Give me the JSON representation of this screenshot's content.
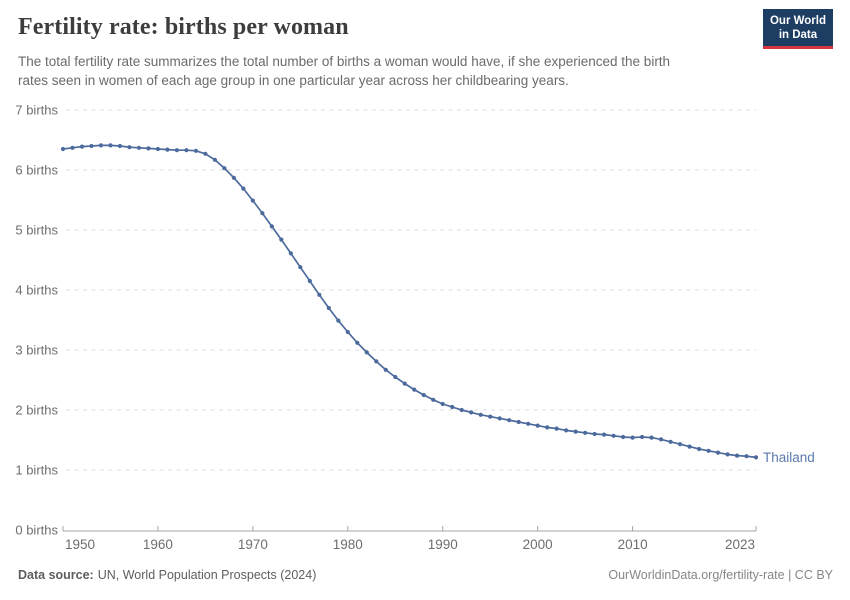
{
  "header": {
    "title": "Fertility rate: births per woman",
    "subtitle_lines": [
      "The total fertility rate summarizes the total number of births a woman would have, if she experienced the birth",
      "rates seen in women of each age group in one particular year across her childbearing years."
    ],
    "logo": {
      "line1": "Our World",
      "line2": "in Data",
      "bg_color": "#1d3d63",
      "accent_color": "#d7353f"
    }
  },
  "chart_data": {
    "type": "line",
    "title": "Fertility rate: births per woman",
    "xlabel": "",
    "ylabel": "births per woman",
    "x_range": [
      1950,
      2023
    ],
    "y_range": [
      0,
      7
    ],
    "grid": "dashed-horizontal",
    "legend_position": "end-of-line-label",
    "entity_label": "Thailand",
    "colors": {
      "line": "#4c6a9c",
      "entity_label": "#5b79ab",
      "grid": "#dedede",
      "axis": "#a5a5a5",
      "tick_label": "#6e6e6e"
    },
    "y_ticks": [
      {
        "value": 0,
        "label": "0 births"
      },
      {
        "value": 1,
        "label": "1 births"
      },
      {
        "value": 2,
        "label": "2 births"
      },
      {
        "value": 3,
        "label": "3 births"
      },
      {
        "value": 4,
        "label": "4 births"
      },
      {
        "value": 5,
        "label": "5 births"
      },
      {
        "value": 6,
        "label": "6 births"
      },
      {
        "value": 7,
        "label": "7 births"
      }
    ],
    "x_ticks": [
      {
        "value": 1950,
        "label": "1950"
      },
      {
        "value": 1960,
        "label": "1960"
      },
      {
        "value": 1970,
        "label": "1970"
      },
      {
        "value": 1980,
        "label": "1980"
      },
      {
        "value": 1990,
        "label": "1990"
      },
      {
        "value": 2000,
        "label": "2000"
      },
      {
        "value": 2010,
        "label": "2010"
      },
      {
        "value": 2023,
        "label": "2023"
      }
    ],
    "series": [
      {
        "name": "Thailand",
        "years": [
          1950,
          1951,
          1952,
          1953,
          1954,
          1955,
          1956,
          1957,
          1958,
          1959,
          1960,
          1961,
          1962,
          1963,
          1964,
          1965,
          1966,
          1967,
          1968,
          1969,
          1970,
          1971,
          1972,
          1973,
          1974,
          1975,
          1976,
          1977,
          1978,
          1979,
          1980,
          1981,
          1982,
          1983,
          1984,
          1985,
          1986,
          1987,
          1988,
          1989,
          1990,
          1991,
          1992,
          1993,
          1994,
          1995,
          1996,
          1997,
          1998,
          1999,
          2000,
          2001,
          2002,
          2003,
          2004,
          2005,
          2006,
          2007,
          2008,
          2009,
          2010,
          2011,
          2012,
          2013,
          2014,
          2015,
          2016,
          2017,
          2018,
          2019,
          2020,
          2021,
          2022,
          2023
        ],
        "values": [
          6.35,
          6.37,
          6.39,
          6.4,
          6.41,
          6.41,
          6.4,
          6.38,
          6.37,
          6.36,
          6.35,
          6.34,
          6.33,
          6.33,
          6.32,
          6.27,
          6.17,
          6.03,
          5.87,
          5.69,
          5.49,
          5.28,
          5.06,
          4.84,
          4.61,
          4.38,
          4.15,
          3.92,
          3.7,
          3.49,
          3.3,
          3.12,
          2.96,
          2.81,
          2.67,
          2.55,
          2.44,
          2.34,
          2.25,
          2.17,
          2.1,
          2.05,
          2.0,
          1.96,
          1.92,
          1.89,
          1.86,
          1.83,
          1.8,
          1.77,
          1.74,
          1.71,
          1.69,
          1.66,
          1.64,
          1.62,
          1.6,
          1.59,
          1.57,
          1.55,
          1.54,
          1.55,
          1.54,
          1.51,
          1.47,
          1.43,
          1.39,
          1.35,
          1.32,
          1.29,
          1.26,
          1.24,
          1.23,
          1.21
        ]
      }
    ]
  },
  "footer": {
    "source_label": "Data source:",
    "source_text": "UN, World Population Prospects (2024)",
    "link_text": "OurWorldinData.org/fertility-rate",
    "divider": " | ",
    "license_text": "CC BY"
  }
}
